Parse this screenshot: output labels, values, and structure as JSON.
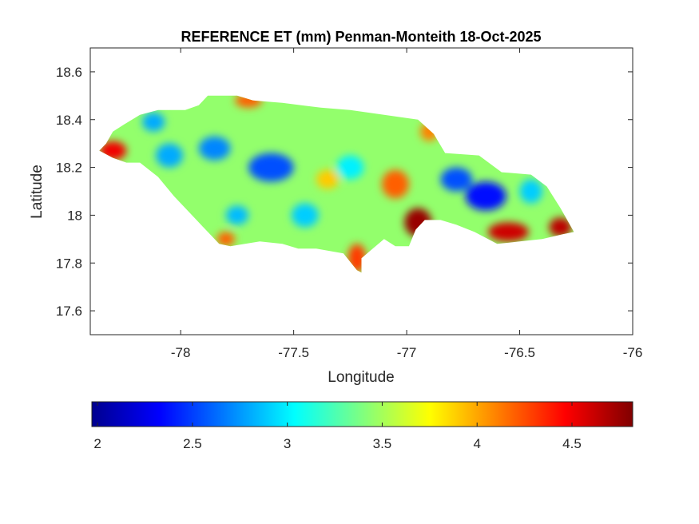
{
  "chart_data": {
    "type": "heatmap",
    "title": "REFERENCE ET (mm) Penman-Monteith 18-Oct-2025",
    "xlabel": "Longitude",
    "ylabel": "Latitude",
    "xlim": [
      -78.4,
      -76.0
    ],
    "ylim": [
      17.5,
      18.7
    ],
    "xticks": [
      -78,
      -77.5,
      -77,
      -76.5,
      -76
    ],
    "yticks": [
      17.6,
      17.8,
      18,
      18.2,
      18.4,
      18.6
    ],
    "x_tick_labels": [
      "-78",
      "-77.5",
      "-77",
      "-76.5",
      "-76"
    ],
    "y_tick_labels": [
      "17.6",
      "17.8",
      "18",
      "18.2",
      "18.4",
      "18.6"
    ],
    "colorbar": {
      "colormap": "jet",
      "orientation": "horizontal",
      "limits": [
        1.97,
        4.82
      ],
      "ticks": [
        2,
        2.5,
        3,
        3.5,
        4,
        4.5
      ],
      "tick_labels": [
        "2",
        "2.5",
        "3",
        "3.5",
        "4",
        "4.5"
      ]
    },
    "outline": [
      [
        -78.36,
        18.27
      ],
      [
        -78.33,
        18.3
      ],
      [
        -78.3,
        18.35
      ],
      [
        -78.25,
        18.38
      ],
      [
        -78.18,
        18.42
      ],
      [
        -78.1,
        18.44
      ],
      [
        -77.98,
        18.44
      ],
      [
        -77.92,
        18.46
      ],
      [
        -77.88,
        18.5
      ],
      [
        -77.75,
        18.5
      ],
      [
        -77.68,
        18.48
      ],
      [
        -77.55,
        18.47
      ],
      [
        -77.38,
        18.45
      ],
      [
        -77.25,
        18.44
      ],
      [
        -77.1,
        18.42
      ],
      [
        -76.95,
        18.4
      ],
      [
        -76.88,
        18.34
      ],
      [
        -76.83,
        18.26
      ],
      [
        -76.68,
        18.25
      ],
      [
        -76.58,
        18.18
      ],
      [
        -76.45,
        18.17
      ],
      [
        -76.38,
        18.12
      ],
      [
        -76.32,
        18.03
      ],
      [
        -76.29,
        17.98
      ],
      [
        -76.26,
        17.93
      ],
      [
        -76.31,
        17.92
      ],
      [
        -76.4,
        17.9
      ],
      [
        -76.5,
        17.89
      ],
      [
        -76.6,
        17.88
      ],
      [
        -76.7,
        17.93
      ],
      [
        -76.78,
        17.96
      ],
      [
        -76.85,
        17.98
      ],
      [
        -76.92,
        17.98
      ],
      [
        -76.96,
        17.94
      ],
      [
        -76.99,
        17.87
      ],
      [
        -77.05,
        17.87
      ],
      [
        -77.1,
        17.9
      ],
      [
        -77.15,
        17.86
      ],
      [
        -77.2,
        17.82
      ],
      [
        -77.2,
        17.76
      ],
      [
        -77.16,
        17.74
      ],
      [
        -77.22,
        17.77
      ],
      [
        -77.28,
        17.84
      ],
      [
        -77.4,
        17.86
      ],
      [
        -77.48,
        17.86
      ],
      [
        -77.55,
        17.88
      ],
      [
        -77.65,
        17.89
      ],
      [
        -77.78,
        17.87
      ],
      [
        -77.83,
        17.88
      ],
      [
        -77.87,
        17.92
      ],
      [
        -77.92,
        17.97
      ],
      [
        -77.98,
        18.03
      ],
      [
        -78.03,
        18.08
      ],
      [
        -78.1,
        18.16
      ],
      [
        -78.18,
        18.22
      ],
      [
        -78.24,
        18.22
      ],
      [
        -78.3,
        18.24
      ]
    ],
    "field_blobs": [
      {
        "lon": -77.6,
        "lat": 18.2,
        "value": 2.55,
        "sx": 0.1,
        "sy": 0.06
      },
      {
        "lon": -77.85,
        "lat": 18.28,
        "value": 2.7,
        "sx": 0.07,
        "sy": 0.05
      },
      {
        "lon": -78.05,
        "lat": 18.25,
        "value": 2.8,
        "sx": 0.06,
        "sy": 0.05
      },
      {
        "lon": -78.12,
        "lat": 18.39,
        "value": 2.8,
        "sx": 0.05,
        "sy": 0.04
      },
      {
        "lon": -77.75,
        "lat": 18.0,
        "value": 2.85,
        "sx": 0.05,
        "sy": 0.04
      },
      {
        "lon": -77.45,
        "lat": 18.0,
        "value": 2.9,
        "sx": 0.06,
        "sy": 0.05
      },
      {
        "lon": -77.25,
        "lat": 18.2,
        "value": 3.0,
        "sx": 0.06,
        "sy": 0.05
      },
      {
        "lon": -76.65,
        "lat": 18.08,
        "value": 2.35,
        "sx": 0.09,
        "sy": 0.06
      },
      {
        "lon": -76.78,
        "lat": 18.15,
        "value": 2.55,
        "sx": 0.07,
        "sy": 0.05
      },
      {
        "lon": -76.45,
        "lat": 18.1,
        "value": 2.9,
        "sx": 0.05,
        "sy": 0.05
      },
      {
        "lon": -76.95,
        "lat": 17.97,
        "value": 4.75,
        "sx": 0.06,
        "sy": 0.06
      },
      {
        "lon": -77.05,
        "lat": 18.13,
        "value": 4.2,
        "sx": 0.06,
        "sy": 0.06
      },
      {
        "lon": -76.55,
        "lat": 17.93,
        "value": 4.6,
        "sx": 0.09,
        "sy": 0.04
      },
      {
        "lon": -76.32,
        "lat": 17.95,
        "value": 4.65,
        "sx": 0.05,
        "sy": 0.04
      },
      {
        "lon": -78.3,
        "lat": 18.27,
        "value": 4.5,
        "sx": 0.06,
        "sy": 0.04
      },
      {
        "lon": -77.7,
        "lat": 18.48,
        "value": 4.2,
        "sx": 0.06,
        "sy": 0.03
      },
      {
        "lon": -77.22,
        "lat": 17.82,
        "value": 4.3,
        "sx": 0.04,
        "sy": 0.06
      },
      {
        "lon": -77.8,
        "lat": 17.9,
        "value": 4.2,
        "sx": 0.04,
        "sy": 0.03
      },
      {
        "lon": -77.35,
        "lat": 18.15,
        "value": 3.9,
        "sx": 0.05,
        "sy": 0.04
      },
      {
        "lon": -76.9,
        "lat": 18.35,
        "value": 4.1,
        "sx": 0.04,
        "sy": 0.04
      }
    ],
    "background_value": 3.45
  }
}
